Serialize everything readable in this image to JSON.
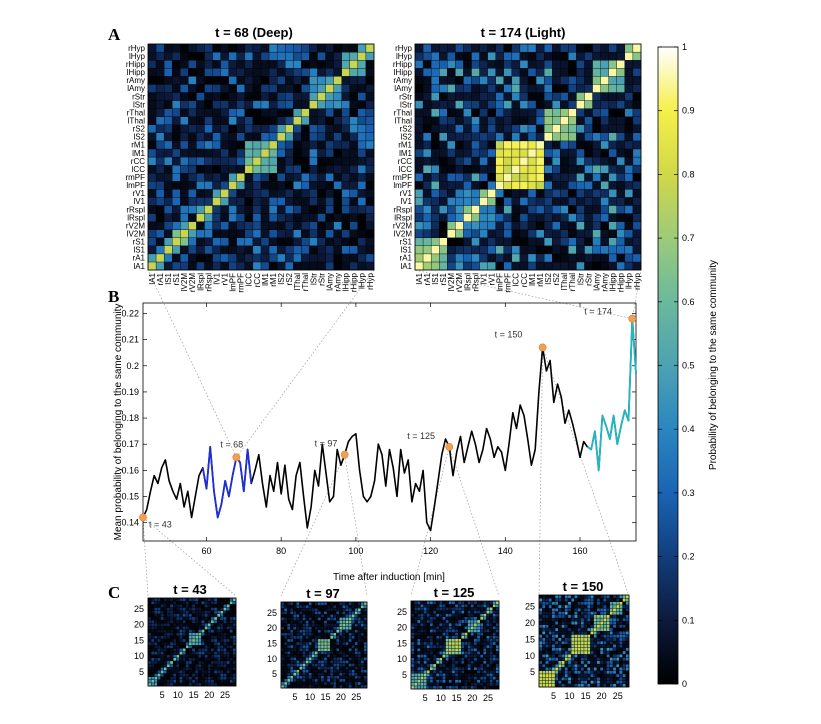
{
  "figure": {
    "panel_letters": [
      "A",
      "B",
      "C"
    ],
    "colorbar": {
      "label": "Probability of belonging to the same community",
      "ticks": [
        "0",
        "0.1",
        "0.2",
        "0.3",
        "0.4",
        "0.5",
        "0.6",
        "0.7",
        "0.8",
        "0.9",
        "1"
      ],
      "colormap": [
        "#000000",
        "#0c1a3c",
        "#123e7c",
        "#1a64b4",
        "#2b86c0",
        "#4ca2b2",
        "#6ab99c",
        "#9ccb7a",
        "#d0d848",
        "#f5f04a",
        "#ffffff"
      ]
    },
    "region_labels": [
      "lA1",
      "rA1",
      "lS1",
      "rS1",
      "lV2M",
      "rV2M",
      "lRspl",
      "rRspl",
      "lV1",
      "rV1",
      "lmPF",
      "rmPF",
      "lCC",
      "rCC",
      "lM1",
      "rM1",
      "lS2",
      "rS2",
      "lThal",
      "rThal",
      "lStr",
      "rStr",
      "lAmy",
      "rAmy",
      "lHipp",
      "rHipp",
      "lHyp",
      "rHyp"
    ],
    "small_matrix_ticks": [
      "5",
      "10",
      "15",
      "20",
      "25"
    ],
    "colors": {
      "series_main": "#000000",
      "series_deep": "#1f2fd6",
      "series_light": "#21b8c2",
      "marker": "#f2a050",
      "connector": "#9a9a9a"
    }
  },
  "chart_data": [
    {
      "type": "line",
      "panel": "B",
      "xlabel": "Time after induction [min]",
      "ylabel": "Mean probability of belonging to the same community",
      "xlim": [
        43,
        175
      ],
      "ylim": [
        0.133,
        0.224
      ],
      "xticks": [
        60,
        80,
        100,
        120,
        140,
        160
      ],
      "yticks": [
        0.14,
        0.15,
        0.16,
        0.17,
        0.18,
        0.19,
        0.2,
        0.21,
        0.22
      ],
      "series": [
        {
          "name": "full",
          "color": "#000000",
          "x": [
            43,
            44,
            45,
            46,
            47,
            48,
            49,
            50,
            51,
            52,
            53,
            54,
            55,
            56,
            57,
            58,
            59,
            60,
            61,
            62,
            63,
            64,
            65,
            66,
            67,
            68,
            69,
            70,
            71,
            72,
            73,
            74,
            75,
            76,
            77,
            78,
            79,
            80,
            81,
            82,
            83,
            84,
            85,
            86,
            87,
            88,
            89,
            90,
            91,
            92,
            93,
            94,
            95,
            96,
            97,
            98,
            99,
            100,
            101,
            102,
            103,
            104,
            105,
            106,
            107,
            108,
            109,
            110,
            111,
            112,
            113,
            114,
            115,
            116,
            117,
            118,
            119,
            120,
            121,
            122,
            123,
            124,
            125,
            126,
            127,
            128,
            129,
            130,
            131,
            132,
            133,
            134,
            135,
            136,
            137,
            138,
            139,
            140,
            141,
            142,
            143,
            144,
            145,
            146,
            147,
            148,
            149,
            150,
            151,
            152,
            153,
            154,
            155,
            156,
            157,
            158,
            159,
            160,
            161,
            162,
            163,
            164,
            165,
            166,
            167,
            168,
            169,
            170,
            171,
            172,
            173,
            174,
            175
          ],
          "y": [
            0.142,
            0.145,
            0.152,
            0.158,
            0.155,
            0.161,
            0.164,
            0.156,
            0.152,
            0.149,
            0.155,
            0.146,
            0.152,
            0.142,
            0.15,
            0.158,
            0.161,
            0.153,
            0.169,
            0.152,
            0.142,
            0.147,
            0.156,
            0.15,
            0.158,
            0.165,
            0.163,
            0.152,
            0.168,
            0.155,
            0.16,
            0.166,
            0.155,
            0.146,
            0.158,
            0.152,
            0.163,
            0.151,
            0.162,
            0.149,
            0.145,
            0.158,
            0.163,
            0.15,
            0.138,
            0.146,
            0.16,
            0.154,
            0.17,
            0.159,
            0.148,
            0.15,
            0.168,
            0.162,
            0.166,
            0.171,
            0.173,
            0.174,
            0.16,
            0.15,
            0.148,
            0.15,
            0.156,
            0.17,
            0.166,
            0.154,
            0.168,
            0.161,
            0.15,
            0.168,
            0.159,
            0.164,
            0.148,
            0.155,
            0.152,
            0.16,
            0.14,
            0.137,
            0.146,
            0.156,
            0.166,
            0.172,
            0.169,
            0.158,
            0.167,
            0.173,
            0.163,
            0.169,
            0.175,
            0.17,
            0.163,
            0.168,
            0.176,
            0.172,
            0.165,
            0.169,
            0.167,
            0.16,
            0.17,
            0.182,
            0.176,
            0.185,
            0.181,
            0.172,
            0.162,
            0.168,
            0.19,
            0.207,
            0.198,
            0.202,
            0.186,
            0.193,
            0.188,
            0.178,
            0.183,
            0.178,
            0.172,
            0.165,
            0.171,
            0.169,
            0.168,
            0.175,
            0.16,
            0.181,
            0.177,
            0.172,
            0.181,
            0.17,
            0.177,
            0.183,
            0.179,
            0.218,
            0.197
          ]
        },
        {
          "name": "deep",
          "color": "#1f2fd6",
          "x_range": [
            59,
            72
          ]
        },
        {
          "name": "light",
          "color": "#21b8c2",
          "x_range": [
            162,
            175
          ]
        }
      ],
      "markers": [
        {
          "t": 43,
          "y": 0.142,
          "label": "t = 43"
        },
        {
          "t": 68,
          "y": 0.165,
          "label": "t = 68"
        },
        {
          "t": 97,
          "y": 0.166,
          "label": "t = 97"
        },
        {
          "t": 125,
          "y": 0.169,
          "label": "t = 125"
        },
        {
          "t": 150,
          "y": 0.207,
          "label": "t = 150"
        },
        {
          "t": 174,
          "y": 0.218,
          "label": "t = 174"
        }
      ]
    },
    {
      "type": "heatmap",
      "panel": "A",
      "title": "t = 68 (Deep)",
      "size": 28,
      "seed": 68,
      "base": 0.22,
      "diag": 0.78,
      "blocks": [
        [
          12,
          15,
          0.62
        ],
        [
          3,
          4,
          0.7
        ],
        [
          20,
          23,
          0.5
        ],
        [
          24,
          26,
          0.55
        ],
        [
          8,
          9,
          0.45
        ]
      ]
    },
    {
      "type": "heatmap",
      "panel": "A",
      "title": "t = 174 (Light)",
      "size": 28,
      "seed": 174,
      "base": 0.3,
      "diag": 0.95,
      "blocks": [
        [
          10,
          15,
          0.96
        ],
        [
          0,
          3,
          0.72
        ],
        [
          16,
          19,
          0.7
        ],
        [
          22,
          25,
          0.6
        ],
        [
          5,
          9,
          0.45
        ]
      ]
    },
    {
      "type": "heatmap",
      "panel": "C",
      "title": "t = 43",
      "size": 28,
      "seed": 43,
      "base": 0.13,
      "diag": 0.62,
      "blocks": [
        [
          13,
          16,
          0.55
        ],
        [
          0,
          2,
          0.5
        ]
      ]
    },
    {
      "type": "heatmap",
      "panel": "C",
      "title": "t = 97",
      "size": 28,
      "seed": 97,
      "base": 0.16,
      "diag": 0.65,
      "blocks": [
        [
          12,
          15,
          0.66
        ],
        [
          19,
          22,
          0.6
        ]
      ]
    },
    {
      "type": "heatmap",
      "panel": "C",
      "title": "t = 125",
      "size": 28,
      "seed": 125,
      "base": 0.2,
      "diag": 0.72,
      "blocks": [
        [
          11,
          15,
          0.78
        ],
        [
          0,
          4,
          0.6
        ],
        [
          18,
          21,
          0.5
        ]
      ]
    },
    {
      "type": "heatmap",
      "panel": "C",
      "title": "t = 150",
      "size": 28,
      "seed": 150,
      "base": 0.26,
      "diag": 0.8,
      "blocks": [
        [
          0,
          4,
          0.85
        ],
        [
          10,
          15,
          0.82
        ],
        [
          17,
          21,
          0.7
        ],
        [
          22,
          25,
          0.6
        ]
      ]
    }
  ]
}
